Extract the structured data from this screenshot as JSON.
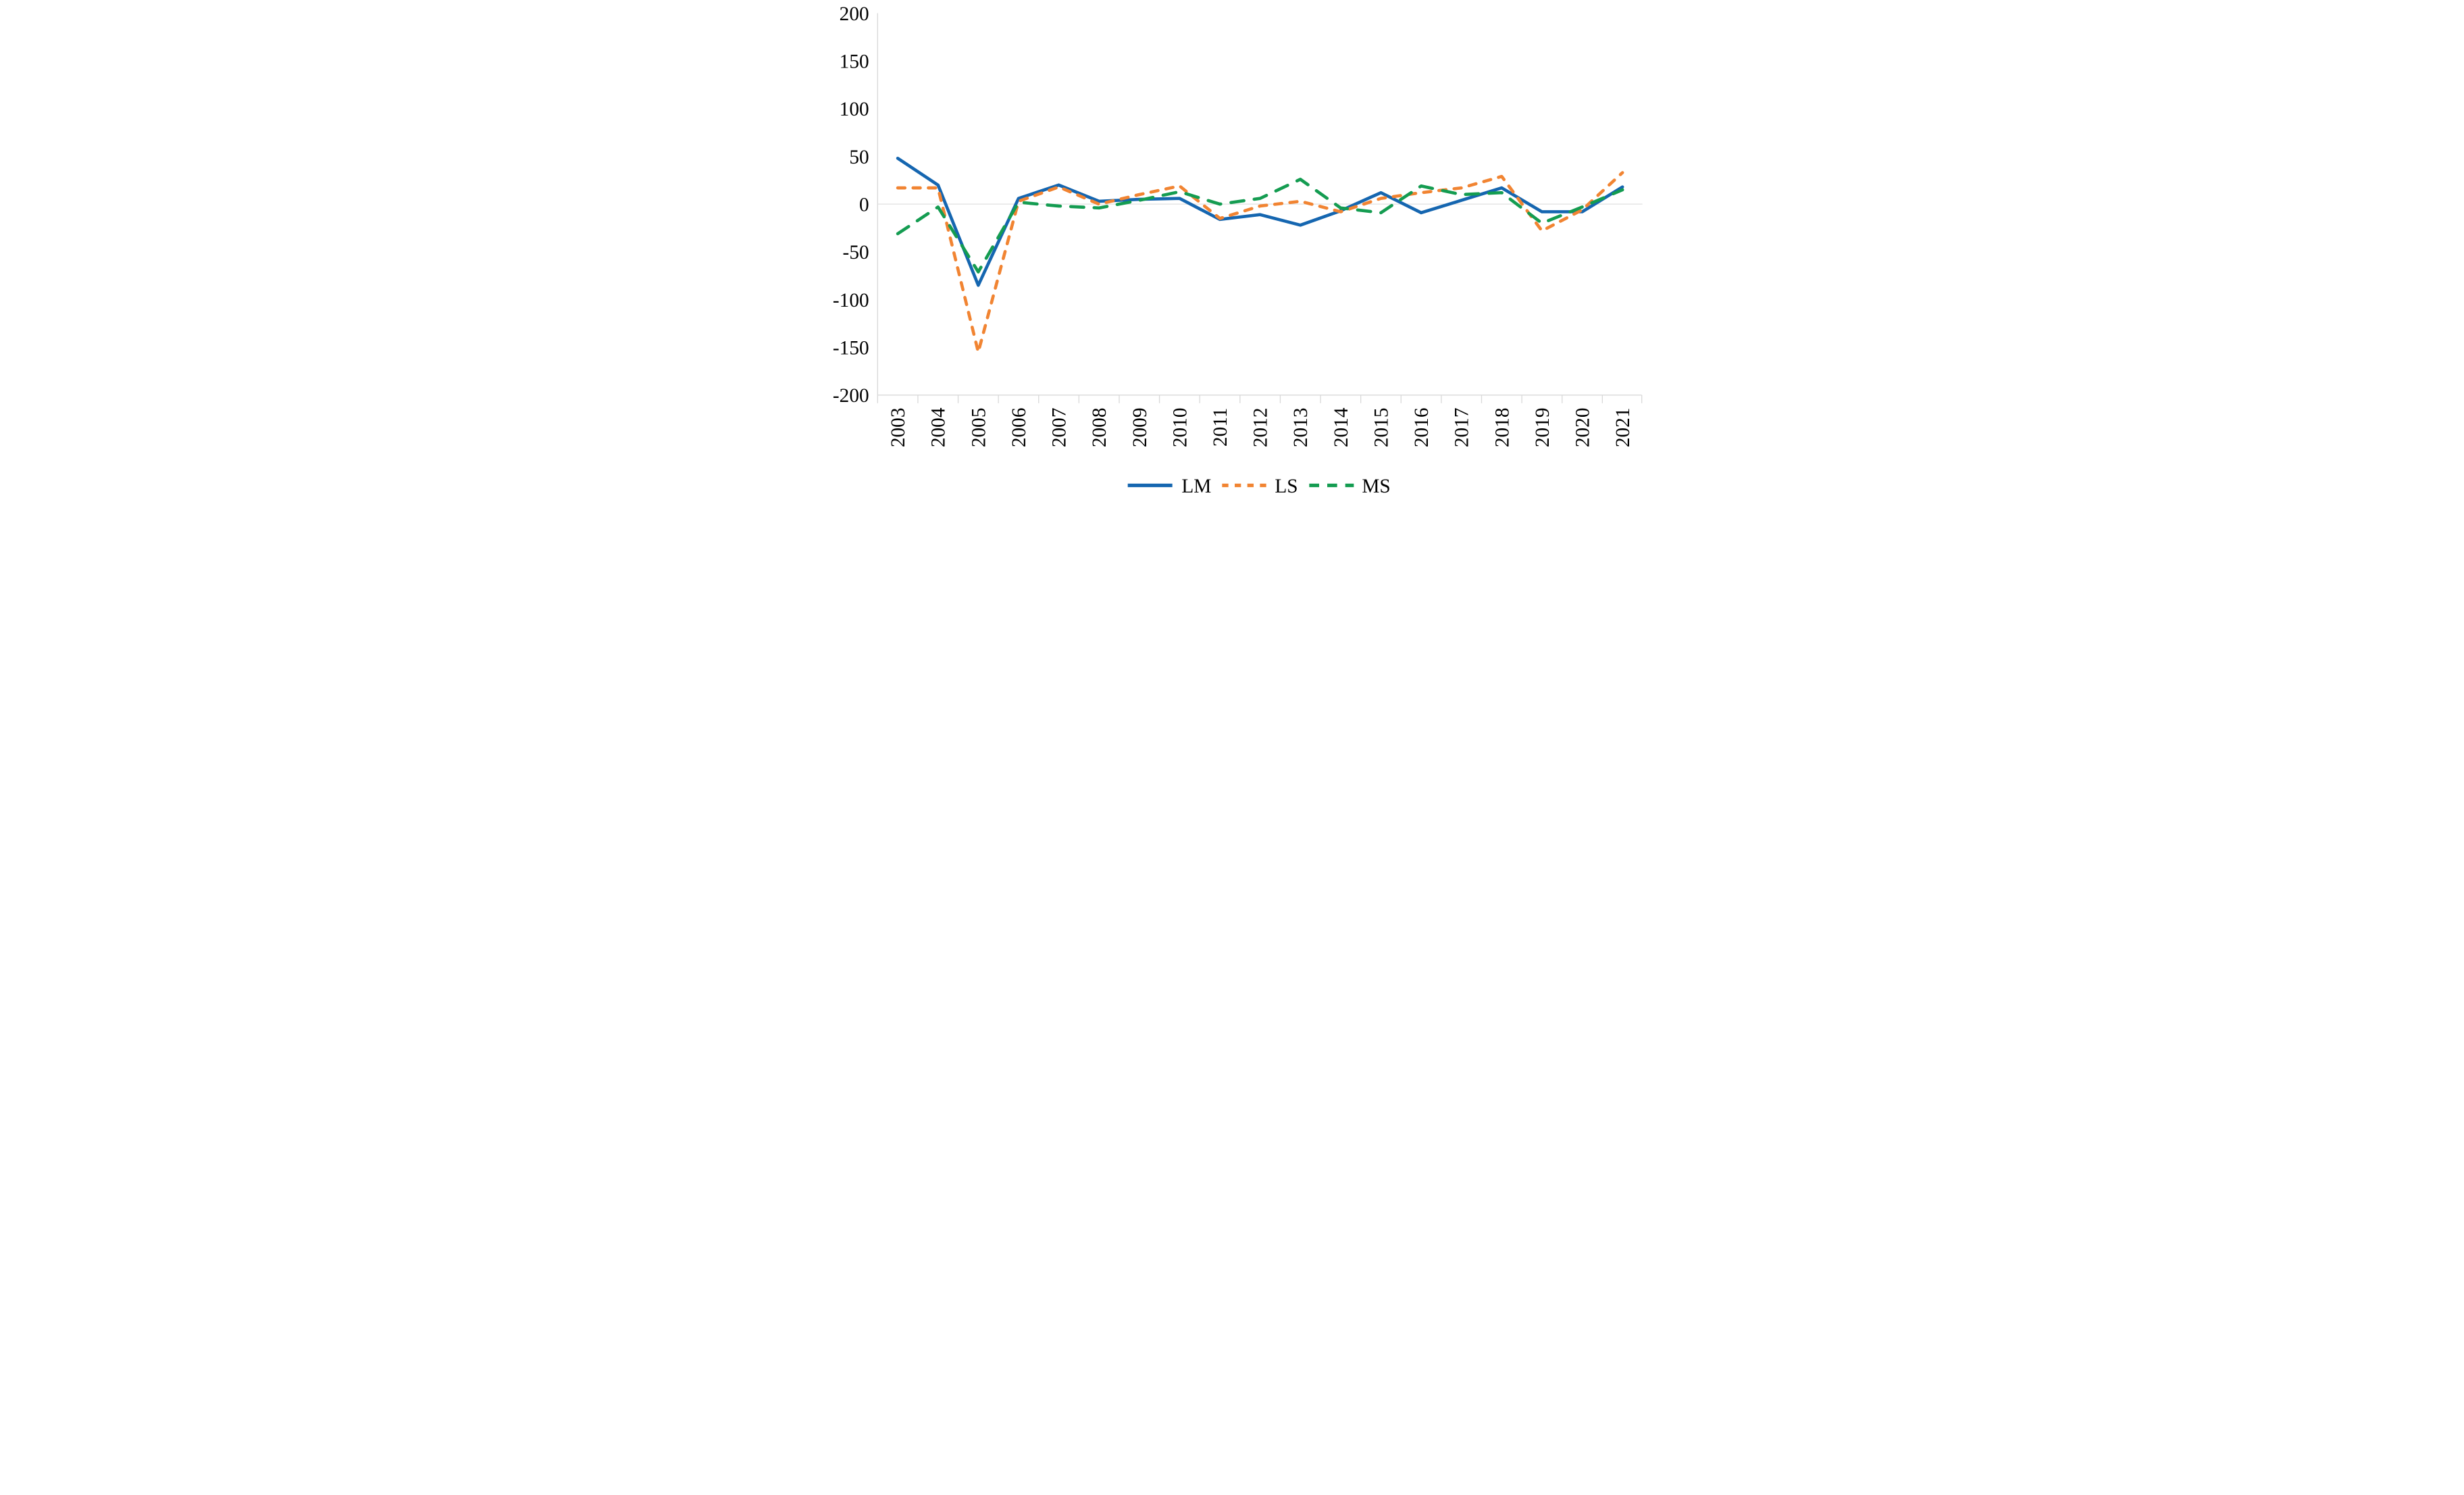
{
  "chart_data": {
    "type": "line",
    "title": "",
    "xlabel": "",
    "ylabel": "",
    "x": [
      2003,
      2004,
      2005,
      2006,
      2007,
      2008,
      2009,
      2010,
      2011,
      2012,
      2013,
      2014,
      2015,
      2016,
      2017,
      2018,
      2019,
      2020,
      2021
    ],
    "series": [
      {
        "name": "LM",
        "style": "solid",
        "color": "#1566b0",
        "values": [
          48,
          20,
          -85,
          6,
          20,
          3,
          5,
          6,
          -16,
          -11,
          -22,
          -7,
          12,
          -9,
          4,
          17,
          -8,
          -8,
          18
        ]
      },
      {
        "name": "LS",
        "style": "dashed-short",
        "color": "#f18432",
        "values": [
          17,
          17,
          -155,
          3,
          18,
          0,
          10,
          19,
          -15,
          -2,
          3,
          -8,
          6,
          12,
          17,
          29,
          -28,
          -6,
          33
        ]
      },
      {
        "name": "MS",
        "style": "dashed-long",
        "color": "#149c51",
        "values": [
          -31,
          -3,
          -71,
          2,
          -2,
          -4,
          4,
          13,
          0,
          6,
          26,
          -4,
          -9,
          19,
          10,
          12,
          -20,
          -3,
          15
        ]
      }
    ],
    "ylim": [
      -200,
      200
    ],
    "y_ticks": [
      "200",
      "150",
      "100",
      "50",
      "0",
      "-50",
      "-100",
      "-150",
      "-200"
    ],
    "y_tick_values": [
      200,
      150,
      100,
      50,
      0,
      -50,
      -100,
      -150,
      -200
    ],
    "grid": "zero-line-only",
    "legend_position": "bottom-center",
    "axis_color": "#d9d9d9",
    "text_color": "#000000"
  }
}
